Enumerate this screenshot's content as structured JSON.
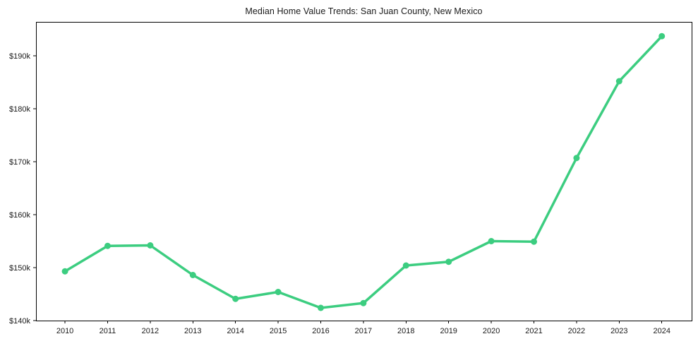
{
  "chart_data": {
    "type": "line",
    "title": "Median Home Value Trends: San Juan County, New Mexico",
    "series_name": "Median Home Value",
    "x": [
      2010,
      2011,
      2012,
      2013,
      2014,
      2015,
      2016,
      2017,
      2018,
      2019,
      2020,
      2021,
      2022,
      2023,
      2024
    ],
    "values": [
      149300,
      154100,
      154200,
      148600,
      144100,
      145400,
      142400,
      143300,
      150400,
      151100,
      155000,
      154900,
      170700,
      185200,
      193700
    ],
    "xlabel": "",
    "ylabel": "",
    "xlim": [
      2009.32,
      2024.7
    ],
    "ylim": [
      140000,
      196400
    ],
    "y_ticks": [
      {
        "value": 140000,
        "label": "$140k"
      },
      {
        "value": 150000,
        "label": "$150k"
      },
      {
        "value": 160000,
        "label": "$160k"
      },
      {
        "value": 170000,
        "label": "$170k"
      },
      {
        "value": 180000,
        "label": "$180k"
      },
      {
        "value": 190000,
        "label": "$190k"
      }
    ],
    "x_tick_labels": [
      "2010",
      "2011",
      "2012",
      "2013",
      "2014",
      "2015",
      "2016",
      "2017",
      "2018",
      "2019",
      "2020",
      "2021",
      "2022",
      "2023",
      "2024"
    ],
    "grid": false,
    "legend_position": "none",
    "line_color": "#3ccd80",
    "marker": "circle",
    "axis_color": "#000000",
    "text_color": "#1a1a1a",
    "background_color": "#ffffff"
  }
}
